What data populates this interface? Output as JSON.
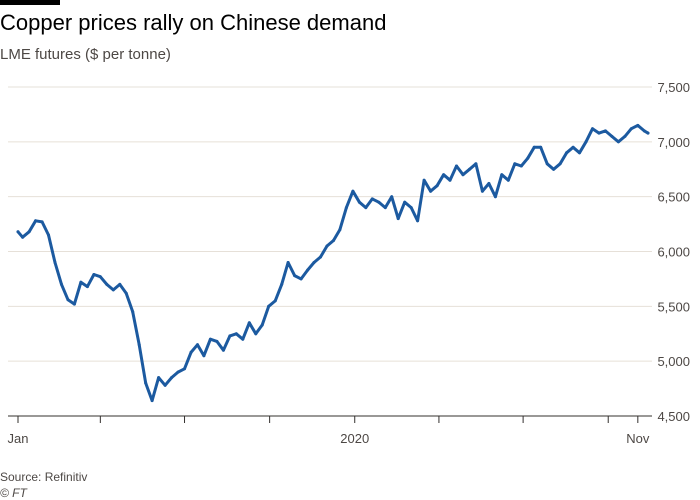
{
  "header": {
    "title": "Copper prices rally on Chinese demand",
    "subtitle": "LME futures ($ per tonne)"
  },
  "footer": {
    "source": "Source: Refinitiv",
    "credit": "© FT"
  },
  "colors": {
    "line": "#1c5aa0",
    "grid": "#e6e0d8",
    "axis": "#33302e",
    "text": "#4d4845"
  },
  "chart_data": {
    "type": "line",
    "title": "Copper prices rally on Chinese demand",
    "subtitle": "LME futures ($ per tonne)",
    "xlabel": "",
    "ylabel": "",
    "y_axis_side": "right",
    "ylim": [
      4500,
      7500
    ],
    "y_ticks": [
      "4,500",
      "5,000",
      "5,500",
      "6,000",
      "6,500",
      "7,000",
      "7,500"
    ],
    "y_tick_values": [
      4500,
      5000,
      5500,
      6000,
      6500,
      7000,
      7500
    ],
    "grid": true,
    "xlim": [
      "2019-01-02",
      "2020-11-13"
    ],
    "x_tick_labels": [
      "Jan",
      "2020",
      "Nov"
    ],
    "x_tick_label_dates": [
      "2019-01-02",
      "2020-01-01",
      "2020-11-02"
    ],
    "x_minor_tick_dates": [
      "2019-04-01",
      "2019-07-01",
      "2019-10-01",
      "2020-04-01",
      "2020-07-01",
      "2020-10-01"
    ],
    "series": [
      {
        "name": "",
        "x": [
          "2019-01-02",
          "2019-01-07",
          "2019-01-14",
          "2019-01-21",
          "2019-01-28",
          "2019-02-04",
          "2019-02-11",
          "2019-02-18",
          "2019-02-25",
          "2019-03-04",
          "2019-03-11",
          "2019-03-18",
          "2019-03-25",
          "2019-04-01",
          "2019-04-08",
          "2019-04-15",
          "2019-04-22",
          "2019-04-29",
          "2019-05-06",
          "2019-05-13",
          "2019-05-20",
          "2019-05-27",
          "2019-06-03",
          "2019-06-10",
          "2019-06-17",
          "2019-06-24",
          "2019-07-01",
          "2019-07-08",
          "2019-07-15",
          "2019-07-22",
          "2019-07-29",
          "2019-08-05",
          "2019-08-12",
          "2019-08-19",
          "2019-08-26",
          "2019-09-02",
          "2019-09-09",
          "2019-09-16",
          "2019-09-23",
          "2019-09-30",
          "2019-10-07",
          "2019-10-14",
          "2019-10-21",
          "2019-10-28",
          "2019-11-04",
          "2019-11-11",
          "2019-11-18",
          "2019-11-25",
          "2019-12-02",
          "2019-12-09",
          "2019-12-16",
          "2019-12-23",
          "2019-12-30",
          "2020-01-06",
          "2020-01-13",
          "2020-01-20",
          "2020-01-27",
          "2020-02-03",
          "2020-02-10",
          "2020-02-17",
          "2020-02-24",
          "2020-03-02",
          "2020-03-09",
          "2020-03-16",
          "2020-03-23",
          "2020-03-30",
          "2020-04-06",
          "2020-04-13",
          "2020-04-20",
          "2020-04-27",
          "2020-05-04",
          "2020-05-11",
          "2020-05-18",
          "2020-05-25",
          "2020-06-01",
          "2020-06-08",
          "2020-06-15",
          "2020-06-22",
          "2020-06-29",
          "2020-07-06",
          "2020-07-13",
          "2020-07-20",
          "2020-07-27",
          "2020-08-03",
          "2020-08-10",
          "2020-08-17",
          "2020-08-24",
          "2020-08-31",
          "2020-09-07",
          "2020-09-14",
          "2020-09-21",
          "2020-09-28",
          "2020-10-05",
          "2020-10-12",
          "2020-10-19",
          "2020-10-26",
          "2020-11-02",
          "2020-11-09",
          "2020-11-13"
        ],
        "values": [
          6180,
          6130,
          6180,
          6280,
          6270,
          6150,
          5900,
          5700,
          5560,
          5520,
          5720,
          5680,
          5790,
          5770,
          5700,
          5650,
          5700,
          5620,
          5450,
          5150,
          4800,
          4640,
          4850,
          4780,
          4850,
          4900,
          4930,
          5080,
          5150,
          5050,
          5200,
          5180,
          5100,
          5230,
          5250,
          5200,
          5350,
          5250,
          5330,
          5500,
          5550,
          5700,
          5900,
          5780,
          5750,
          5830,
          5900,
          5950,
          6050,
          6100,
          6200,
          6400,
          6550,
          6450,
          6400,
          6480,
          6450,
          6400,
          6500,
          6300,
          6450,
          6400,
          6280,
          6650,
          6550,
          6600,
          6700,
          6650,
          6780,
          6700,
          6750,
          6800,
          6550,
          6620,
          6500,
          6700,
          6650,
          6800,
          6780,
          6850,
          6950,
          6950,
          6800,
          6750,
          6800,
          6900,
          6950,
          6900,
          7000,
          7120,
          7080,
          7100,
          7050,
          7000,
          7050,
          7120,
          7150,
          7100,
          7080
        ]
      }
    ]
  }
}
